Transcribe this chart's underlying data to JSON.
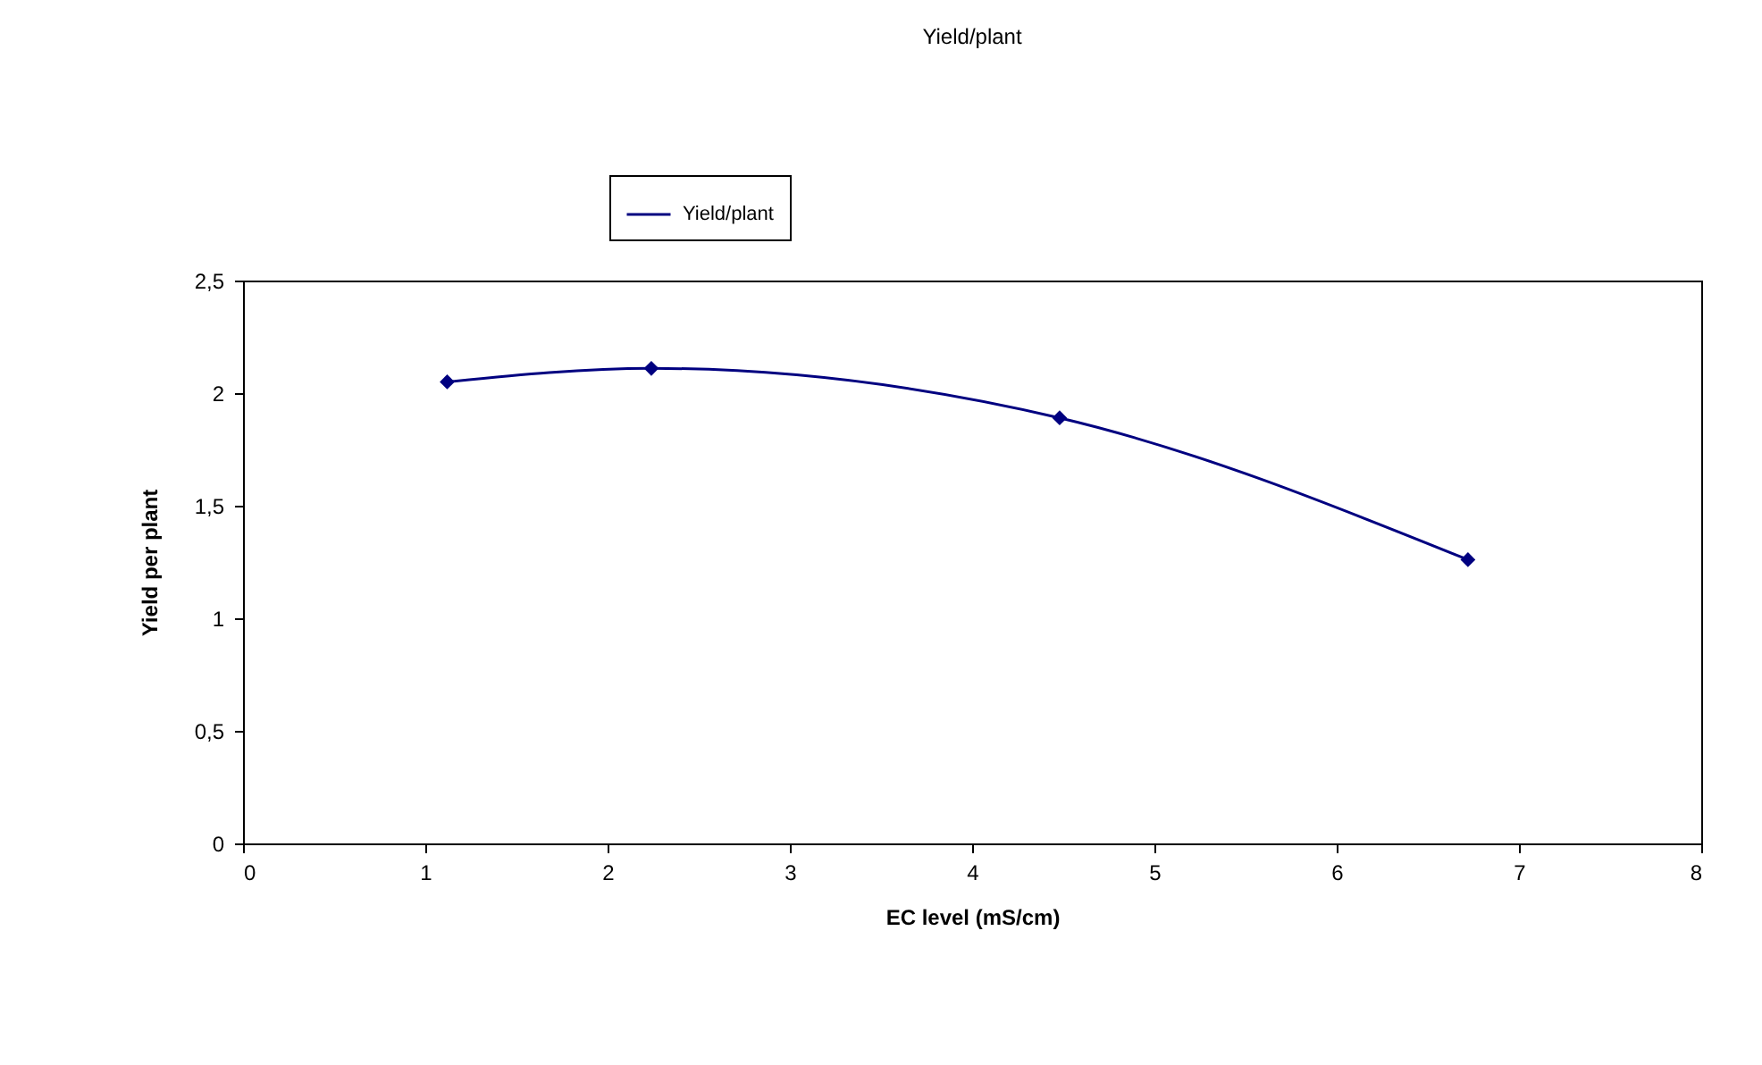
{
  "chart_data": {
    "type": "line",
    "title": "Yield/plant",
    "xlabel": "EC level (mS/cm)",
    "ylabel": "Yield per plant",
    "x": [
      1.12,
      2.24,
      4.48,
      6.72
    ],
    "series": [
      {
        "name": "Yield/plant",
        "color": "#000080",
        "values": [
          2.05,
          2.11,
          1.89,
          1.26
        ]
      }
    ],
    "xlim": [
      0,
      8
    ],
    "xticks": [
      0,
      1,
      2,
      3,
      4,
      5,
      6,
      7,
      8
    ],
    "ylim": [
      0,
      2.5
    ],
    "yticks": [
      0,
      {
        "value": 0.5,
        "label": "0,5"
      },
      1,
      {
        "value": 1.5,
        "label": "1,5"
      },
      2,
      {
        "value": 2.5,
        "label": "2,5"
      }
    ],
    "grid": false,
    "legend": "top",
    "marker": "diamond",
    "line_style": "solid"
  }
}
